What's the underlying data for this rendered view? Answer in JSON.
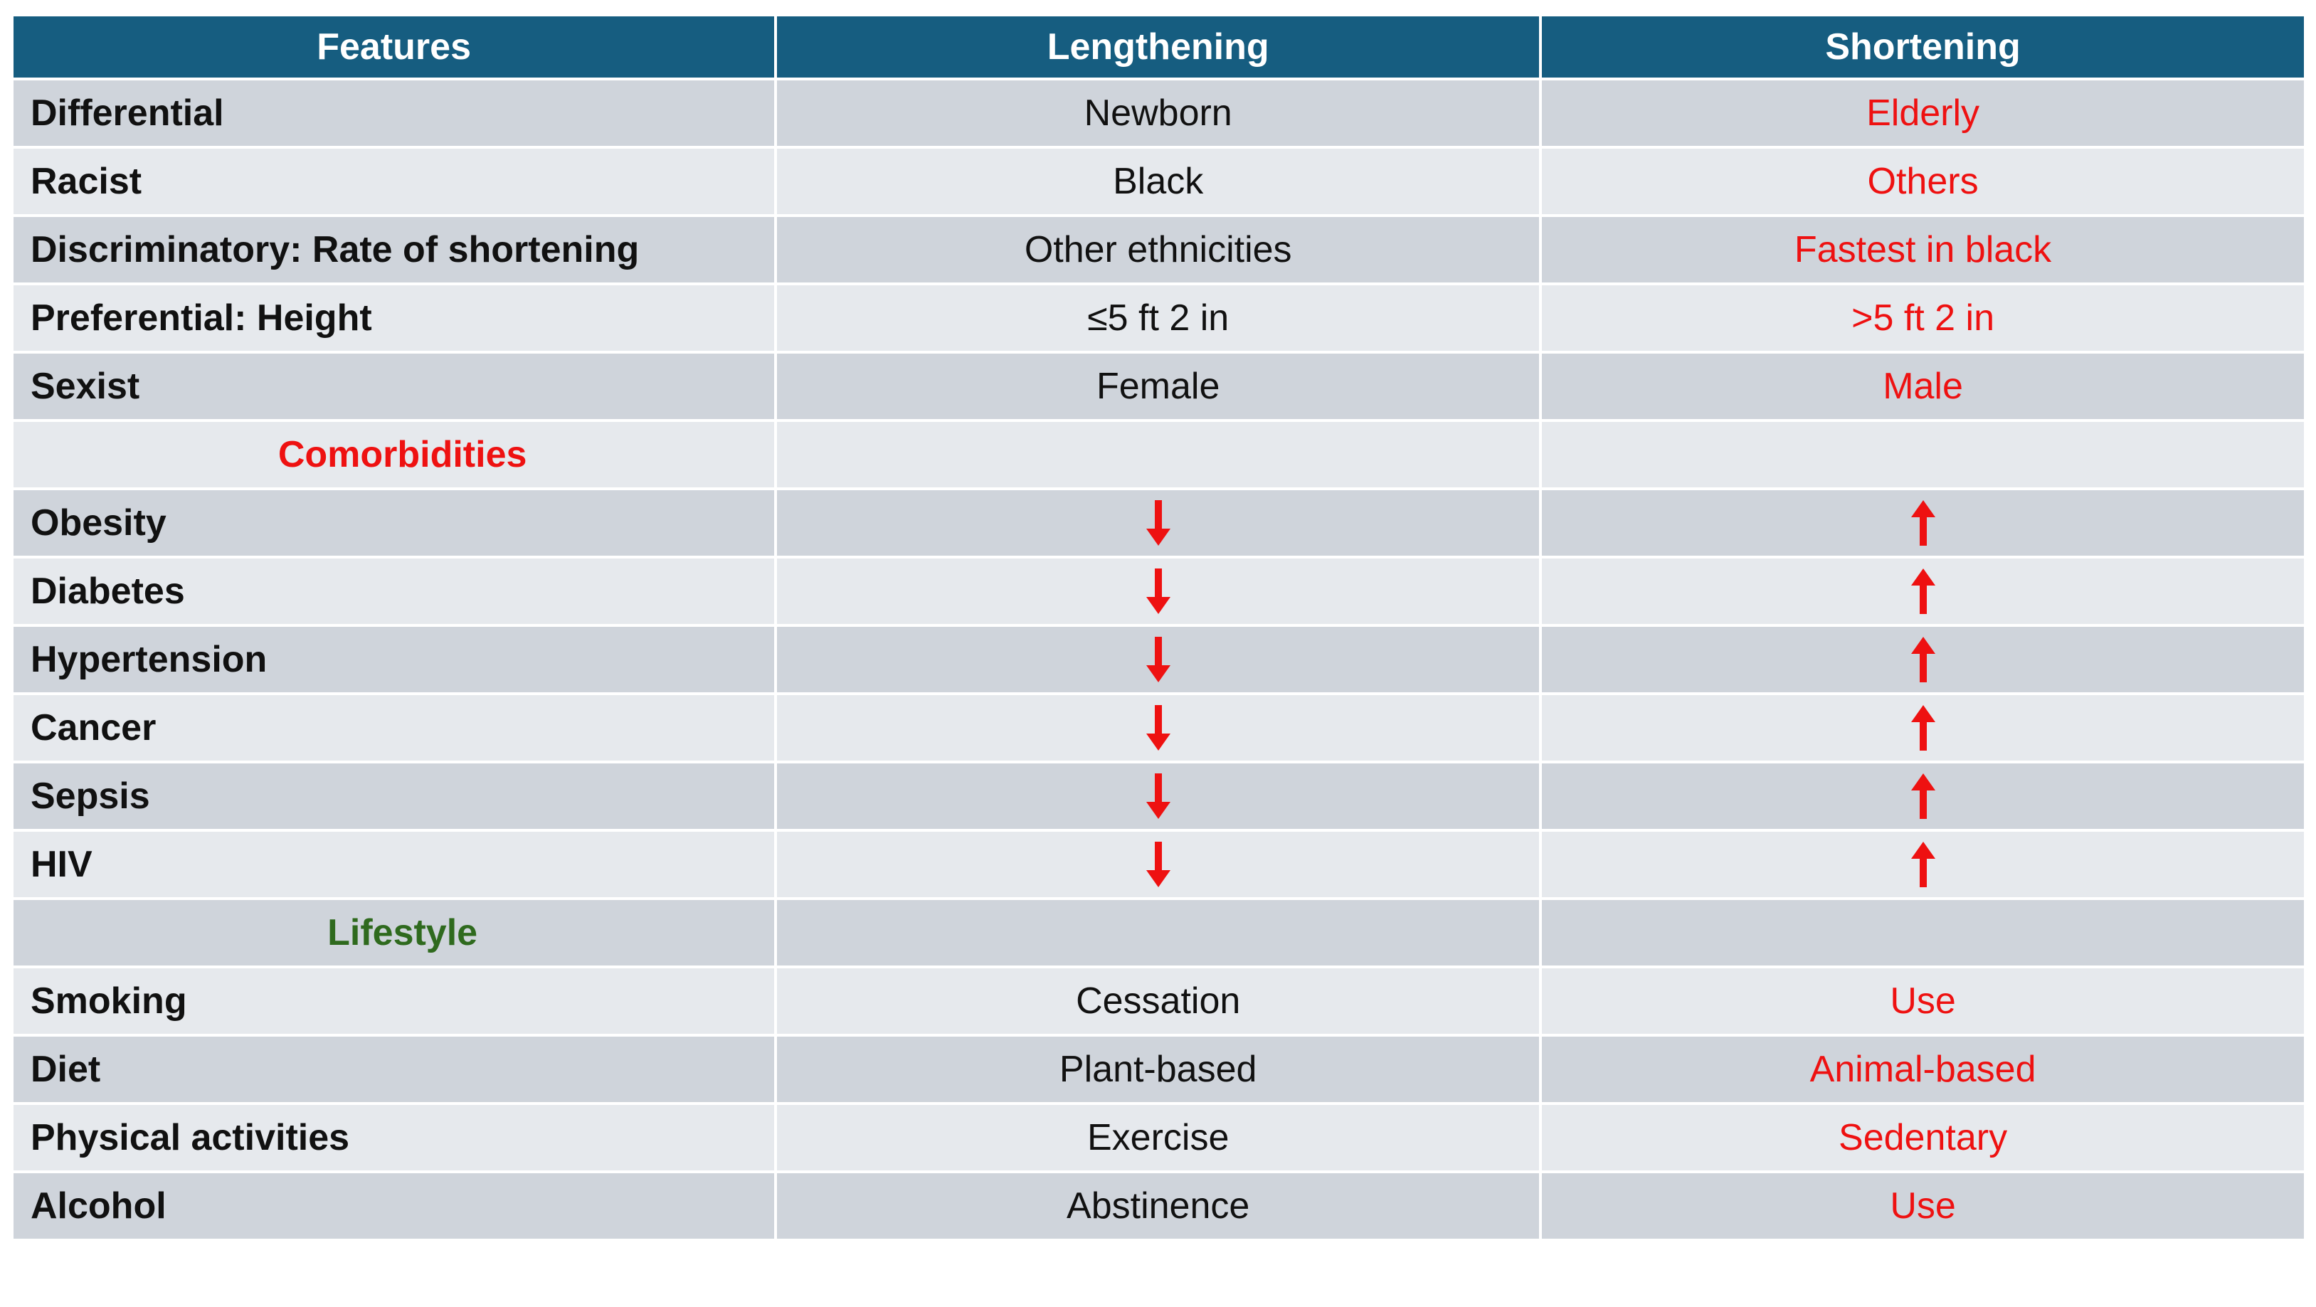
{
  "table": {
    "header": [
      "Features",
      "Lengthening",
      "Shortening"
    ],
    "rows": [
      [
        "Differential",
        "Newborn",
        "Elderly"
      ],
      [
        "Racist",
        "Black",
        "Others"
      ],
      [
        "Discriminatory: Rate of shortening",
        "Other ethnicities",
        "Fastest in black"
      ],
      [
        "Preferential: Height",
        "≤5 ft 2 in",
        ">5 ft 2 in"
      ],
      [
        "Sexist",
        "Female",
        "Male"
      ]
    ],
    "sections": [
      {
        "title": "Comorbidities",
        "color": "#ee1111",
        "rows": [
          [
            "Obesity"
          ],
          [
            "Diabetes"
          ],
          [
            "Hypertension"
          ],
          [
            "Cancer"
          ],
          [
            "Sepsis"
          ],
          [
            "HIV"
          ]
        ]
      },
      {
        "title": "Lifestyle",
        "color": "#2f6a1e",
        "rows": [
          [
            "Smoking",
            "Cessation",
            "Use"
          ],
          [
            "Diet",
            "Plant-based",
            "Animal-based"
          ],
          [
            "Physical activities",
            "Exercise",
            "Sedentary"
          ],
          [
            "Alcohol",
            "Abstinence",
            "Use"
          ]
        ]
      }
    ]
  }
}
